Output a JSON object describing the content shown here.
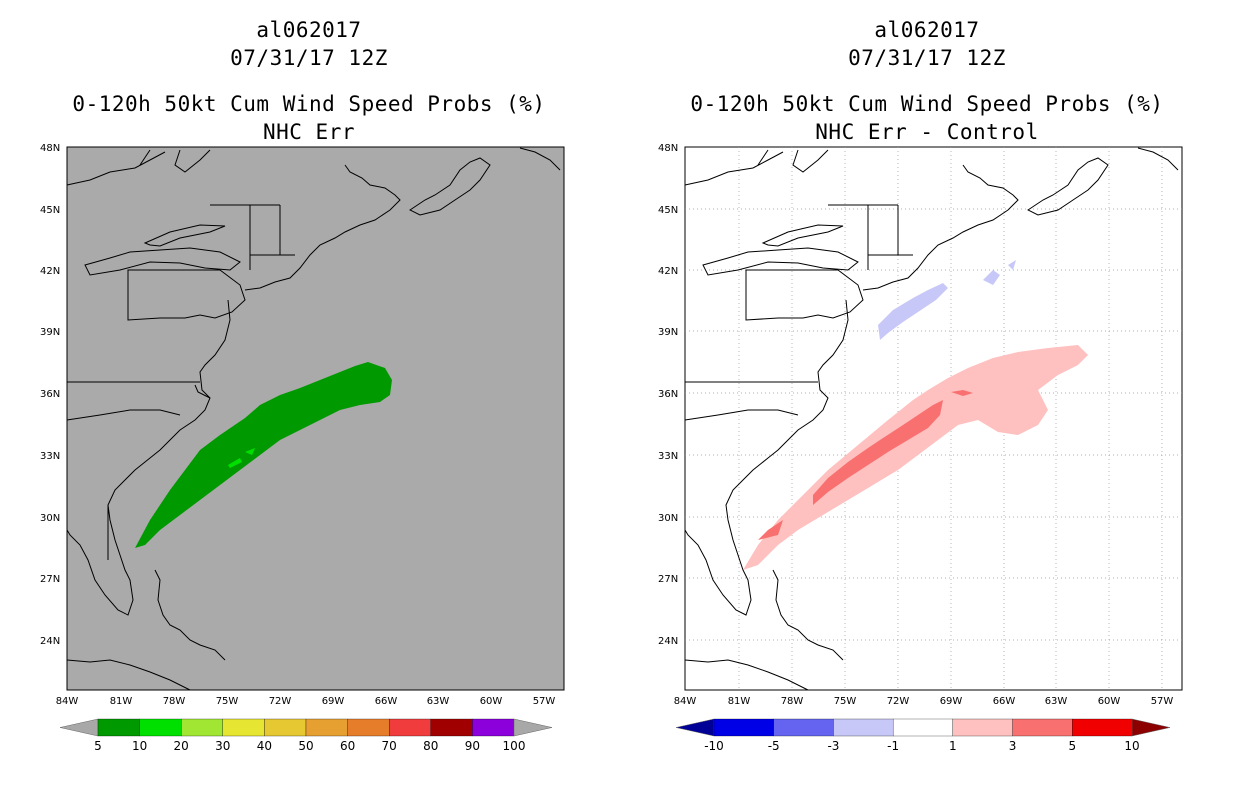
{
  "panels": [
    {
      "storm_id": "al062017",
      "datetime": "07/31/17 12Z",
      "title": "0-120h 50kt Cum Wind Speed Probs (%)",
      "subtitle": "NHC Err",
      "lat_labels": [
        "48N",
        "45N",
        "42N",
        "39N",
        "36N",
        "33N",
        "30N",
        "27N",
        "24N"
      ],
      "lon_labels": [
        "84W",
        "81W",
        "78W",
        "75W",
        "72W",
        "69W",
        "66W",
        "63W",
        "60W",
        "57W"
      ],
      "colorbar": {
        "labels": [
          "5",
          "10",
          "20",
          "30",
          "40",
          "50",
          "60",
          "70",
          "80",
          "90",
          "100"
        ],
        "colors": [
          "#009a00",
          "#00e000",
          "#a0e632",
          "#e6e632",
          "#e6c832",
          "#e6a032",
          "#e67d2a",
          "#f03c3c",
          "#a00000",
          "#8c00dc"
        ],
        "under_color": "#a8a8a8",
        "over_color": "#a8a8a8"
      },
      "background_color": "#aaaaaa"
    },
    {
      "storm_id": "al062017",
      "datetime": "07/31/17 12Z",
      "title": "0-120h 50kt Cum Wind Speed Probs (%)",
      "subtitle": "NHC Err - Control",
      "lat_labels": [
        "48N",
        "45N",
        "42N",
        "39N",
        "36N",
        "33N",
        "30N",
        "27N",
        "24N"
      ],
      "lon_labels": [
        "84W",
        "81W",
        "78W",
        "75W",
        "72W",
        "69W",
        "66W",
        "63W",
        "60W",
        "57W"
      ],
      "colorbar": {
        "labels": [
          "-10",
          "-5",
          "-3",
          "-1",
          "1",
          "3",
          "5",
          "10"
        ],
        "colors": [
          "#0000e6",
          "#6464f0",
          "#c8c8f8",
          "#ffffff",
          "#ffc0c0",
          "#f87070",
          "#f00000"
        ],
        "under_color": "#000096",
        "over_color": "#8c0000"
      },
      "background_color": "#ffffff"
    }
  ]
}
